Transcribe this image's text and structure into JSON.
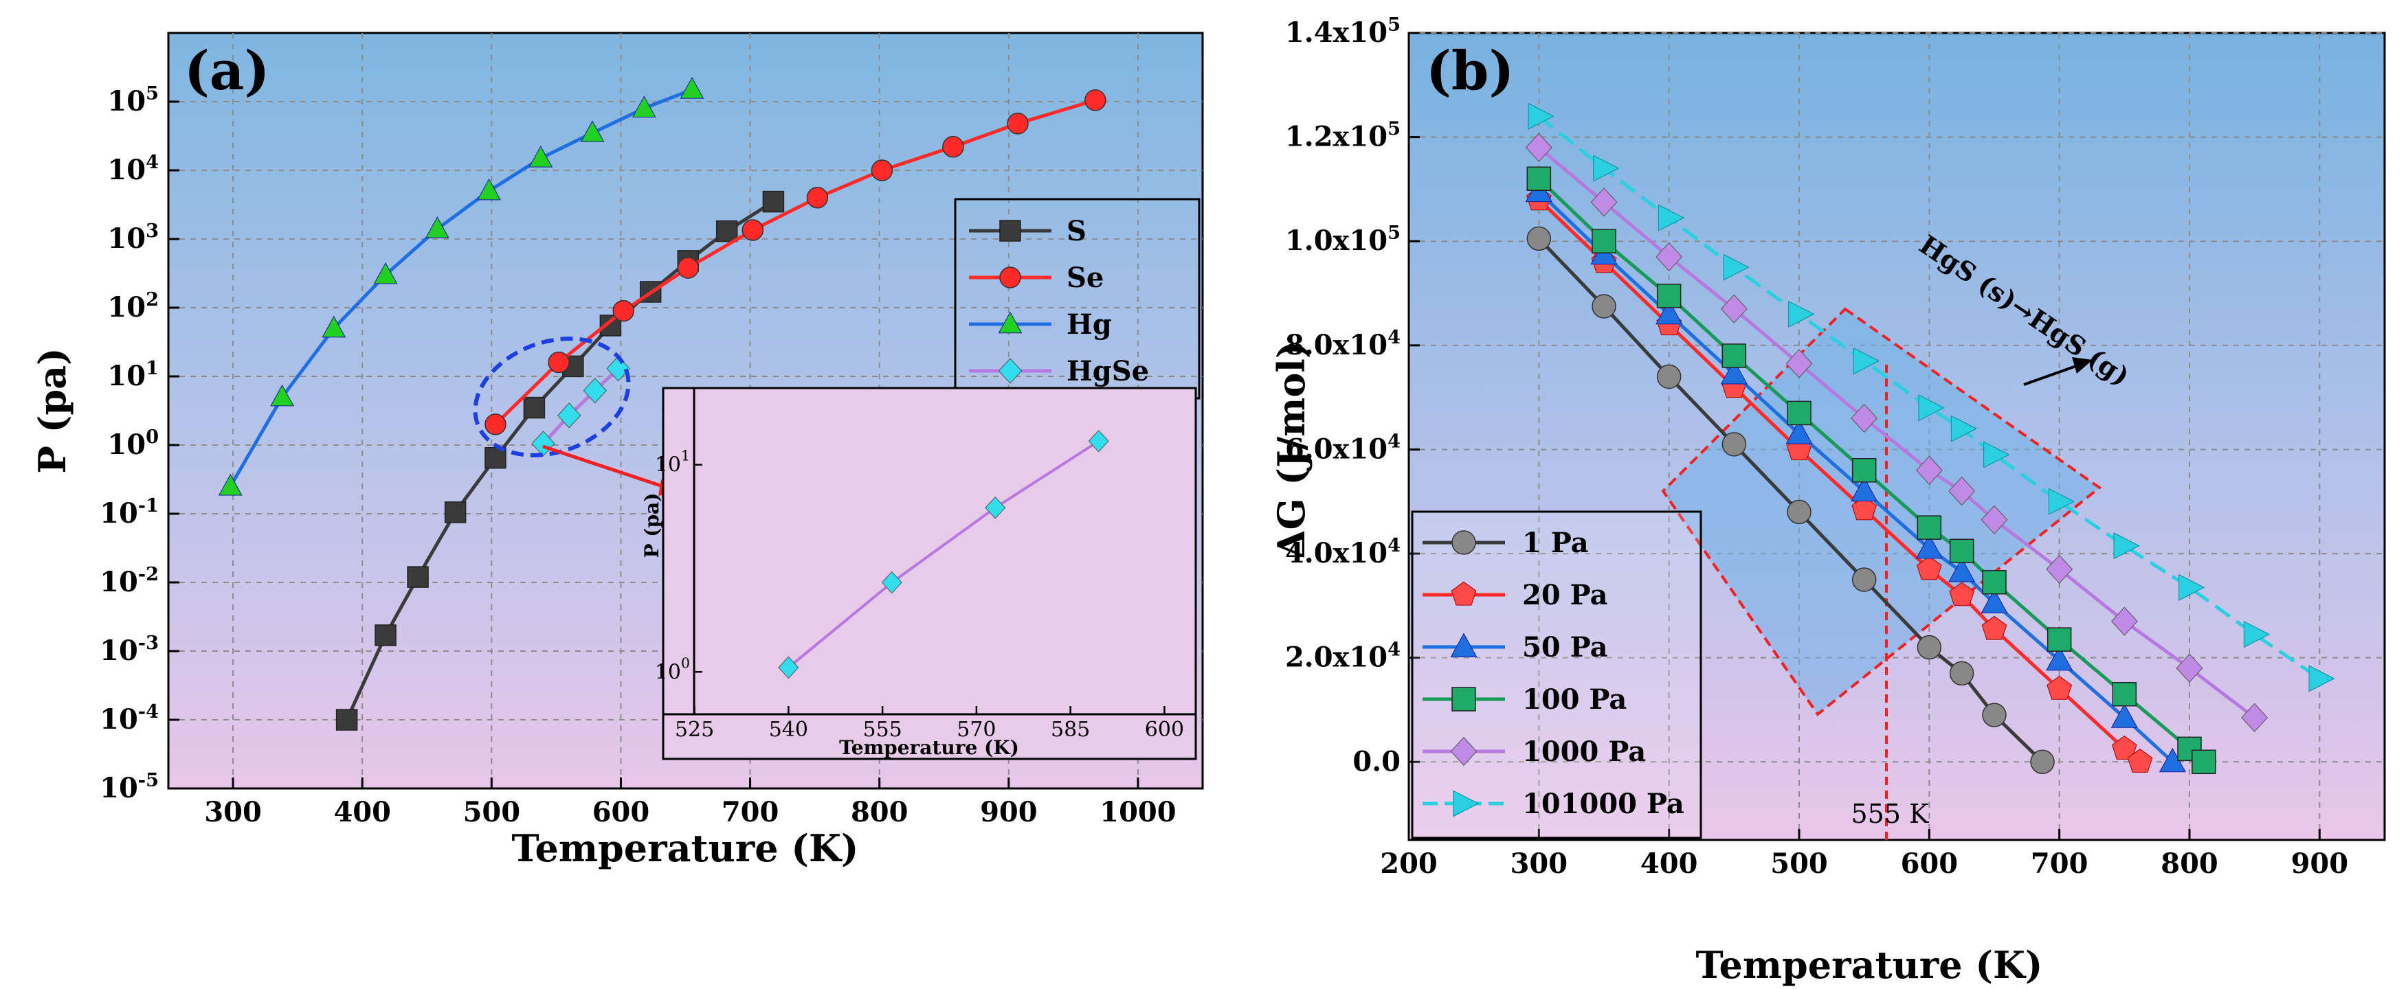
{
  "chart_data": [
    {
      "panel_label": "(a)",
      "type": "line",
      "xlabel": "Temperature (K)",
      "ylabel": "P (pa)",
      "y_scale": "log",
      "xlim": [
        250,
        1050
      ],
      "ylim_exp": [
        -5,
        6
      ],
      "x_ticks": [
        "300",
        "400",
        "500",
        "600",
        "700",
        "800",
        "900",
        "1000"
      ],
      "y_ticks": [
        "10-5",
        "10-4",
        "10-3",
        "10-2",
        "10-1",
        "100",
        "101",
        "102",
        "103",
        "104",
        "105"
      ],
      "legend_position": "right",
      "series": [
        {
          "name": "S",
          "color": "#3a3a3a",
          "marker": "square",
          "x": [
            388,
            418,
            443,
            472,
            503,
            533,
            563,
            592,
            623,
            652,
            682,
            718
          ],
          "y": [
            0.0001,
            0.0017,
            0.012,
            0.105,
            0.65,
            3.5,
            14,
            55,
            170,
            480,
            1300,
            3500
          ]
        },
        {
          "name": "Se",
          "color": "#ff2a2a",
          "marker": "circle",
          "x": [
            503,
            552,
            602,
            652,
            702,
            752,
            802,
            857,
            907,
            967
          ],
          "y": [
            2.0,
            16,
            90,
            380,
            1350,
            4000,
            10000,
            22000,
            48000,
            105000
          ]
        },
        {
          "name": "Hg",
          "color": "#1f6fe0",
          "marker": "triangle",
          "marker_color": "#22d022",
          "x": [
            298,
            338,
            378,
            418,
            458,
            498,
            538,
            578,
            618,
            655
          ],
          "y": [
            0.25,
            5,
            50,
            300,
            1400,
            5000,
            15000,
            35000,
            80000,
            150000
          ]
        },
        {
          "name": "HgSe",
          "color": "#b779e0",
          "marker": "diamond",
          "marker_color": "#33ddee",
          "x": [
            540,
            560,
            580,
            598
          ],
          "y": [
            1.05,
            2.7,
            6.2,
            13
          ]
        }
      ],
      "inset": {
        "xlabel": "Temperature (K)",
        "ylabel": "P (pa)",
        "x_ticks": [
          "525",
          "540",
          "555",
          "570",
          "585",
          "600"
        ],
        "y_ticks": [
          "100",
          "101"
        ],
        "xlim": [
          520,
          605
        ],
        "series": {
          "name": "HgSe",
          "x": [
            540,
            556.5,
            573,
            589.5
          ],
          "y": [
            1.05,
            2.7,
            6.2,
            13
          ]
        }
      }
    },
    {
      "panel_label": "(b)",
      "type": "line",
      "xlabel": "Temperature (K)",
      "ylabel": "ΔG (J/mol)",
      "xlim": [
        200,
        950
      ],
      "ylim": [
        -15000,
        140000
      ],
      "x_ticks": [
        "200",
        "300",
        "400",
        "500",
        "600",
        "700",
        "800",
        "900"
      ],
      "y_ticks": [
        "0.0",
        "2.0x104",
        "4.0x104",
        "6.0x104",
        "8.0x104",
        "1.0x105",
        "1.2x105",
        "1.4x105"
      ],
      "annotations": [
        "HgS (s)→HgS (g)",
        "555 K"
      ],
      "legend_position": "bottom-left",
      "series": [
        {
          "name": "1 Pa",
          "color": "#3a3a3a",
          "marker": "circle",
          "marker_color": "#888888",
          "x": [
            300,
            350,
            400,
            450,
            500,
            550,
            600,
            625,
            650,
            687
          ],
          "y": [
            100500,
            87500,
            74000,
            61000,
            48000,
            35000,
            22000,
            17000,
            9000,
            0
          ]
        },
        {
          "name": "20 Pa",
          "color": "#ff2a2a",
          "marker": "pentagon",
          "marker_color": "#ff4a4a",
          "x": [
            300,
            350,
            400,
            450,
            500,
            550,
            600,
            625,
            650,
            700,
            750,
            762
          ],
          "y": [
            108000,
            96000,
            84000,
            72000,
            60000,
            48500,
            37000,
            32000,
            25500,
            14000,
            2500,
            0
          ]
        },
        {
          "name": "50 Pa",
          "color": "#1f6fe0",
          "marker": "triangle",
          "marker_color": "#1f6fe0",
          "x": [
            300,
            350,
            400,
            450,
            500,
            550,
            600,
            625,
            650,
            700,
            750,
            787
          ],
          "y": [
            109500,
            97500,
            86000,
            74500,
            63000,
            52000,
            41000,
            36500,
            30500,
            19500,
            8500,
            0
          ]
        },
        {
          "name": "100 Pa",
          "color": "#1a9a5a",
          "marker": "square",
          "marker_color": "#1faa6a",
          "x": [
            300,
            350,
            400,
            450,
            500,
            550,
            600,
            625,
            650,
            700,
            750,
            800,
            811
          ],
          "y": [
            112000,
            100000,
            89500,
            78000,
            67000,
            56000,
            45000,
            40500,
            34500,
            23500,
            13000,
            2500,
            0
          ]
        },
        {
          "name": "1000 Pa",
          "color": "#b779e0",
          "marker": "diamond",
          "marker_color": "#c08ae6",
          "x": [
            300,
            350,
            400,
            450,
            500,
            550,
            600,
            625,
            650,
            700,
            750,
            800,
            850
          ],
          "y": [
            118000,
            107500,
            97000,
            87000,
            76500,
            66000,
            56000,
            52000,
            46500,
            37000,
            27000,
            18000,
            8500
          ]
        },
        {
          "name": "101000 Pa",
          "color": "#2ad0e0",
          "marker": "right-triangle",
          "marker_color": "#2ad0e0",
          "x": [
            300,
            350,
            400,
            450,
            500,
            550,
            600,
            625,
            650,
            700,
            750,
            800,
            850,
            900
          ],
          "y": [
            124000,
            114000,
            104500,
            95000,
            86000,
            77000,
            68000,
            64000,
            59000,
            50000,
            41500,
            33500,
            24500,
            16000
          ]
        }
      ]
    }
  ]
}
